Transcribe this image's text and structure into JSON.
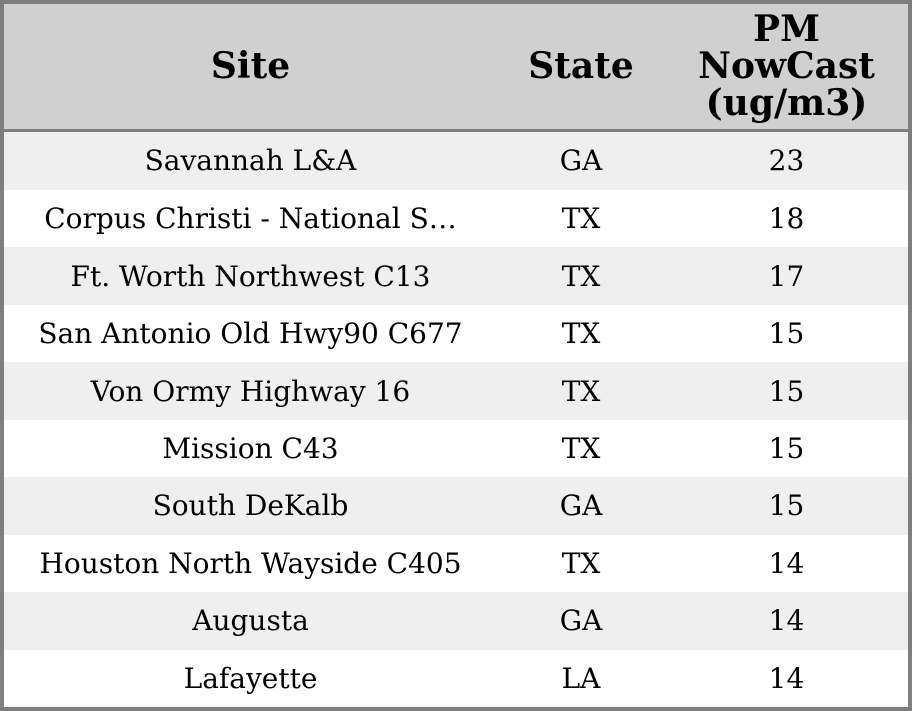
{
  "header": {
    "site_label": "Site",
    "state_label": "State",
    "pm_label": "PM\nNowCast\n(ug/m3)"
  },
  "colors": {
    "outer_border": "#7e7e7e",
    "header_background": "#d0d0d0",
    "header_separator": "#7e7e7e",
    "row_stripe": "#efefef",
    "row_plain": "#ffffff",
    "text": "#000000"
  },
  "chart_data": {
    "type": "table",
    "columns": [
      "Site",
      "State",
      "PM NowCast (ug/m3)"
    ],
    "rows": [
      [
        "Savannah L&A",
        "GA",
        23
      ],
      [
        "Corpus Christi - National S…",
        "TX",
        18
      ],
      [
        "Ft. Worth Northwest C13",
        "TX",
        17
      ],
      [
        "San Antonio Old Hwy90 C677",
        "TX",
        15
      ],
      [
        "Von Ormy Highway 16",
        "TX",
        15
      ],
      [
        "Mission C43",
        "TX",
        15
      ],
      [
        "South DeKalb",
        "GA",
        15
      ],
      [
        "Houston North Wayside C405",
        "TX",
        14
      ],
      [
        "Augusta",
        "GA",
        14
      ],
      [
        "Lafayette",
        "LA",
        14
      ]
    ]
  }
}
